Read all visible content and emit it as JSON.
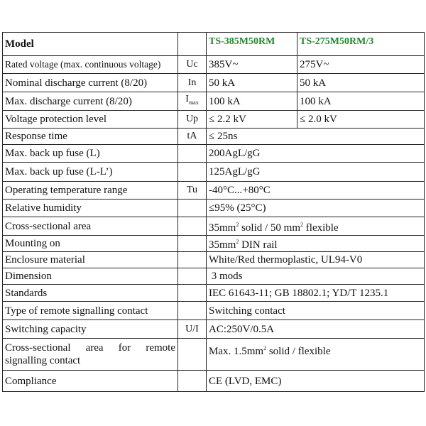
{
  "header": {
    "label": "Model",
    "models": [
      "TS-385M50RM",
      "TS-275M50RM/3"
    ],
    "model_color": "#1f8a2e"
  },
  "rows": [
    {
      "label": "Rated voltage (max. continuous voltage)",
      "symbol": "Uc",
      "values": [
        "385V~",
        "275V~"
      ]
    },
    {
      "label": "Nominal discharge current (8/20)",
      "symbol": "In",
      "values": [
        "50 kA",
        "50 kA"
      ]
    },
    {
      "label": "Max. discharge current (8/20)",
      "symbol": "I",
      "symbol_sub": "max",
      "values": [
        "100 kA",
        "100 kA"
      ]
    },
    {
      "label": "Voltage protection level",
      "symbol": "Up",
      "values": [
        "≤ 2.2 kV",
        "≤ 2.0 kV"
      ]
    },
    {
      "label": "Response time",
      "symbol": "tA",
      "value": "≤ 25ns"
    },
    {
      "label": "Max. back up fuse (L)",
      "symbol": "",
      "value": "200AgL/gG"
    },
    {
      "label": "Max. back up fuse (L-L’)",
      "symbol": "",
      "value": "125AgL/gG"
    },
    {
      "label": "Operating temperature range",
      "symbol": "Tu",
      "value": "-40°C...+80°C"
    },
    {
      "label": "Relative humidity",
      "symbol": "",
      "value": "≤95% (25°C)"
    },
    {
      "label": "Cross-sectional area",
      "symbol": "",
      "value_a": "35mm",
      "value_b": " solid / 50 mm",
      "value_c": " flexible",
      "sup": "2"
    },
    {
      "label": "Mounting on",
      "symbol": "",
      "value_a": "35mm",
      "value_b": " DIN rail",
      "sup": "2"
    },
    {
      "label": "Enclosure material",
      "symbol": "",
      "value": "White/Red thermoplastic, UL94-V0"
    },
    {
      "label": "Dimension",
      "symbol": "",
      "value": " 3 mods"
    },
    {
      "label": "Standards",
      "symbol": "",
      "value": "IEC 61643-11; GB 18802.1; YD/T 1235.1"
    },
    {
      "label": "Type of remote signalling contact",
      "symbol": "",
      "value": "Switching contact"
    },
    {
      "label": "Switching capacity",
      "symbol": "U/I",
      "value": "AC:250V/0.5A"
    },
    {
      "label": "Cross-sectional area for remote signalling contact",
      "symbol": "",
      "value_a": "Max. 1.5mm",
      "value_b": " solid / flexible",
      "sup": "2"
    },
    {
      "label": "Compliance",
      "symbol": "",
      "value": "CE (LVD, EMC)"
    }
  ]
}
